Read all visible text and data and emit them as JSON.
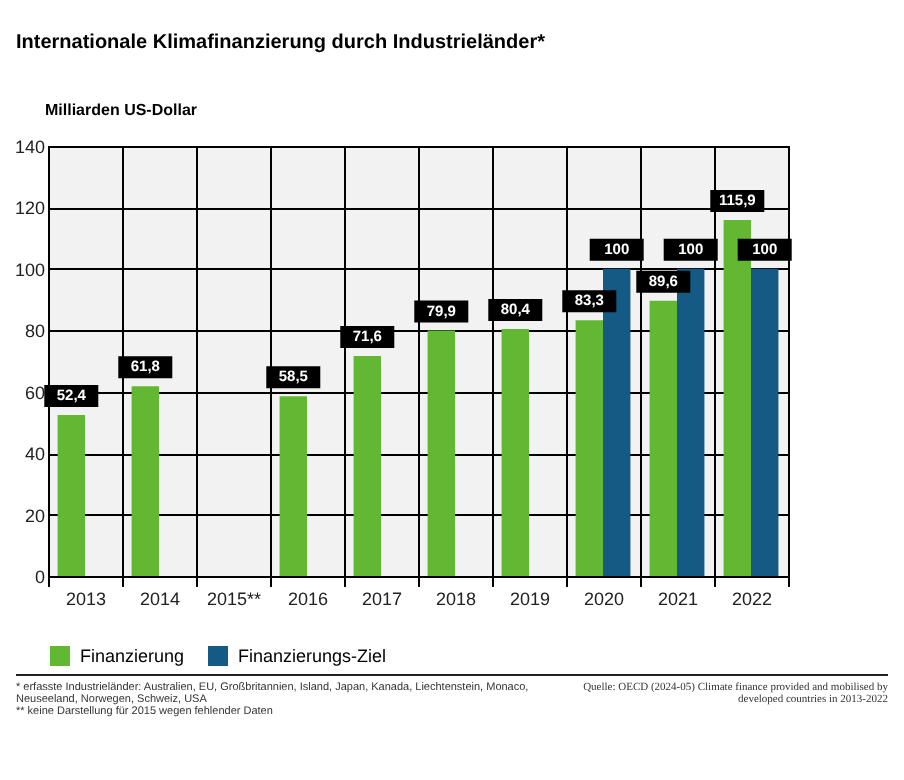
{
  "chart_data": {
    "type": "bar",
    "title": "Internationale Klimafinanzierung durch Industrieländer*",
    "ylabel": "Milliarden US-Dollar",
    "categories": [
      "2013",
      "2014",
      "2015**",
      "2016",
      "2017",
      "2018",
      "2019",
      "2020",
      "2021",
      "2022"
    ],
    "series": [
      {
        "name": "Finanzierung",
        "color": "#62b832",
        "values": [
          52.4,
          61.8,
          null,
          58.5,
          71.6,
          79.9,
          80.4,
          83.3,
          89.6,
          115.9
        ],
        "value_labels": [
          "52,4",
          "61,8",
          null,
          "58,5",
          "71,6",
          "79,9",
          "80,4",
          "83,3",
          "89,6",
          "115,9"
        ]
      },
      {
        "name": "Finanzierungs-Ziel",
        "color": "#155a85",
        "values": [
          null,
          null,
          null,
          null,
          null,
          null,
          null,
          100,
          100,
          100
        ],
        "value_labels": [
          null,
          null,
          null,
          null,
          null,
          null,
          null,
          "100",
          "100",
          "100"
        ]
      }
    ],
    "ylim": [
      0,
      140
    ],
    "yticks": [
      0,
      20,
      40,
      60,
      80,
      100,
      120,
      140
    ],
    "grid": true,
    "legend": "bottom",
    "annotations": [
      "* erfasste Industrieländer: Australien, EU, Großbritannien, Island, Japan, Kanada, Liechtenstein, Monaco, Neuseeland, Norwegen, Schweiz, USA",
      "** keine Darstellung für 2015 wegen fehlender Daten",
      "Quelle: OECD (2024-05) Climate finance provided and mobilised by developed countries in 2013-2022"
    ]
  }
}
